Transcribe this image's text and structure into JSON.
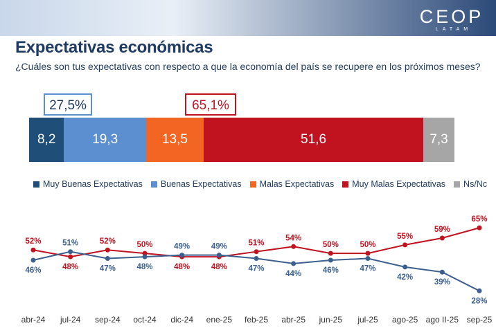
{
  "header": {
    "logo_main": "CEOP",
    "logo_sub": "LATAM",
    "title": "Expectativas económicas",
    "subtitle": "¿Cuáles son tus expectativas con respecto a que la economía del país se recupere en los próximos meses?"
  },
  "colors": {
    "band_start": "#2c4a78",
    "band_end": "#c8d7ea",
    "muy_buenas": "#1f4e79",
    "buenas": "#5b8fd0",
    "malas": "#f26522",
    "muy_malas": "#c1121f",
    "ns_nc": "#a6a6a6"
  },
  "chart_data": [
    {
      "type": "bar",
      "orientation": "horizontal-stacked",
      "totals": {
        "positive": "27,5%",
        "negative": "65,1%"
      },
      "series": [
        {
          "name": "Muy Buenas Expectativas",
          "value": 8.2,
          "label": "8,2",
          "color": "#1f4e79"
        },
        {
          "name": "Buenas Expectativas",
          "value": 19.3,
          "label": "19,3",
          "color": "#5b8fd0"
        },
        {
          "name": "Malas Expectativas",
          "value": 13.5,
          "label": "13,5",
          "color": "#f26522"
        },
        {
          "name": "Muy Malas Expectativas",
          "value": 51.6,
          "label": "51,6",
          "color": "#c1121f"
        },
        {
          "name": "Ns/Nc",
          "value": 7.3,
          "label": "7,3",
          "color": "#a6a6a6"
        }
      ],
      "legend_position": "bottom"
    },
    {
      "type": "line",
      "categories": [
        "abr-24",
        "jul-24",
        "sep-24",
        "oct-24",
        "dic-24",
        "ene-25",
        "feb-25",
        "abr-25",
        "jun-25",
        "jul-25",
        "ago-25",
        "ago II-25",
        "sep-25"
      ],
      "series": [
        {
          "color": "#c1121f",
          "values": [
            52,
            48,
            52,
            50,
            48,
            48,
            51,
            54,
            50,
            50,
            55,
            59,
            65
          ]
        },
        {
          "color": "#3b5f8f",
          "values": [
            46,
            51,
            47,
            48,
            49,
            49,
            47,
            44,
            46,
            47,
            42,
            39,
            28
          ]
        }
      ],
      "ylim": [
        20,
        72
      ],
      "grid": false
    }
  ]
}
